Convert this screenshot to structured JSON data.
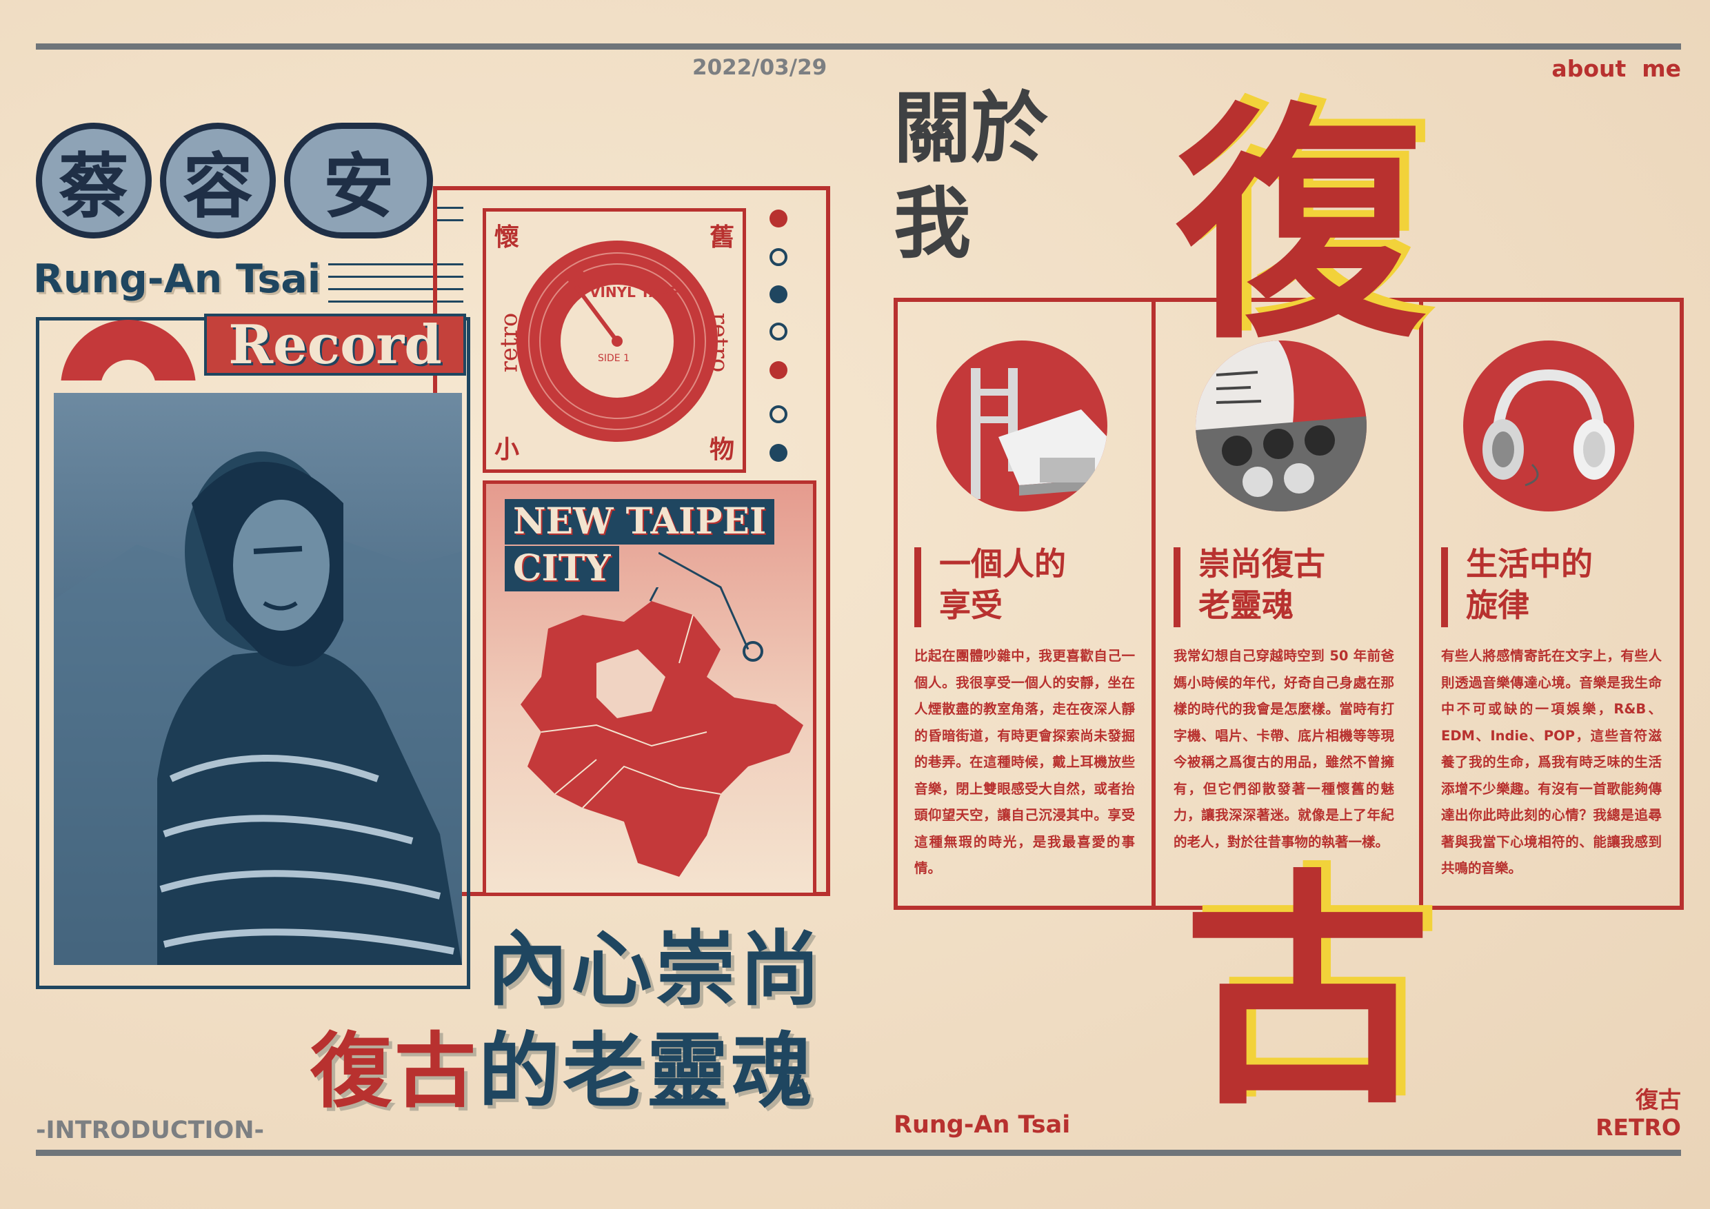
{
  "header": {
    "date": "2022/03/29",
    "section": "about  me"
  },
  "name": {
    "chars": [
      "蔡",
      "容",
      "安"
    ],
    "roman": "Rung-An Tsai"
  },
  "photo_label": "Record",
  "vinyl": {
    "corners": [
      "懷",
      "舊",
      "小",
      "物"
    ],
    "side_word": "retro",
    "record_text": "VINYL TAPE",
    "record_side": "SIDE 1"
  },
  "map": {
    "city_line1": "NEW TAIPEI",
    "city_line2": "CITY"
  },
  "headline": {
    "line1": "內心崇尚",
    "line2_red": "復古",
    "line2_navy": "的老靈魂"
  },
  "footer_left": "-INTRODUCTION-",
  "about": {
    "line1": "關於",
    "line2": "我"
  },
  "huge_chars": [
    "復",
    "古"
  ],
  "cards": [
    {
      "icon": "desk-chair-icon",
      "title_line1": "一個人的",
      "title_line2": "享受",
      "body": "比起在團體吵雜中，我更喜歡自己一個人。我很享受一個人的安靜，坐在人煙散盡的教室角落，走在夜深人靜的昏暗街道，有時更會探索尚未發掘的巷弄。在這種時候，戴上耳機放些音樂，閉上雙眼感受大自然，或者抬頭仰望天空，讓自己沉浸其中。享受這種無瑕的時光，是我最喜愛的事情。"
    },
    {
      "icon": "typewriter-icon",
      "title_line1": "崇尚復古",
      "title_line2": "老靈魂",
      "body": "我常幻想自己穿越時空到 50 年前爸媽小時候的年代，好奇自己身處在那樣的時代的我會是怎麼樣。當時有打字機、唱片、卡帶、底片相機等等現今被稱之爲復古的用品，雖然不曾擁有，但它們卻散發著一種懷舊的魅力，讓我深深著迷。就像是上了年紀的老人，對於往昔事物的執著一樣。"
    },
    {
      "icon": "headphones-icon",
      "title_line1": "生活中的",
      "title_line2": "旋律",
      "body": "有些人將感情寄託在文字上，有些人則透過音樂傳達心境。音樂是我生命中不可或缺的一項娛樂，R&B、EDM、Indie、POP，這些音符滋養了我的生命，爲我有時乏味的生活添增不少樂趣。有沒有一首歌能夠傳達出你此時此刻的心情？我總是追尋著與我當下心境相符的、能讓我感到共鳴的音樂。"
    }
  ],
  "footer_center": "Rung-An Tsai",
  "footer_right": {
    "line1": "復古",
    "line2": "RETRO"
  },
  "colors": {
    "red": "#b8312f",
    "navy": "#1f4660",
    "paper": "#f3e3cc",
    "yellow": "#f2d23a"
  }
}
